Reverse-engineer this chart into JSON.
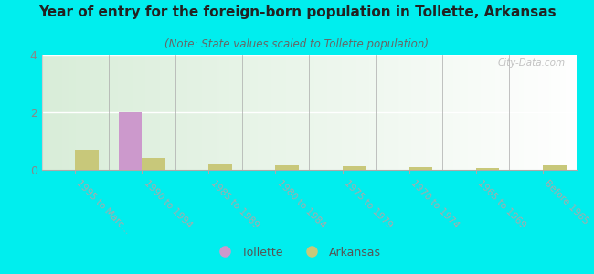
{
  "title": "Year of entry for the foreign-born population in Tollette, Arkansas",
  "subtitle": "(Note: State values scaled to Tollette population)",
  "categories": [
    "1995 to Marc...",
    "1990 to 1994",
    "1985 to 1989",
    "1980 to 1984",
    "1975 to 1979",
    "1970 to 1974",
    "1965 to 1969",
    "Before 1965"
  ],
  "tollette_values": [
    0,
    2,
    0,
    0,
    0,
    0,
    0,
    0
  ],
  "arkansas_values": [
    0.7,
    0.4,
    0.2,
    0.15,
    0.12,
    0.1,
    0.05,
    0.15
  ],
  "tollette_color": "#cc99cc",
  "arkansas_color": "#c8c87a",
  "background_color": "#00eeee",
  "ylim": [
    0,
    4
  ],
  "yticks": [
    0,
    2,
    4
  ],
  "bar_width": 0.35,
  "watermark": "City-Data.com",
  "legend_tollette": "Tollette",
  "legend_arkansas": "Arkansas"
}
